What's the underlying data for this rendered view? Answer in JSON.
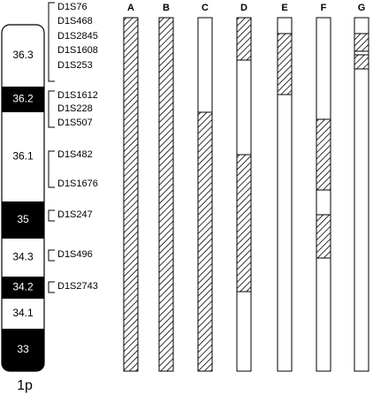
{
  "chromosome": {
    "label": "1p",
    "bands": [
      "36.3",
      "36.2",
      "36.1",
      "35",
      "34.3",
      "34.2",
      "34.1",
      "33"
    ]
  },
  "marker_groups": [
    [
      "D1S76",
      "D1S468",
      "D1S2845",
      "D1S1608",
      "D1S253"
    ],
    [
      "D1S1612",
      "D1S228",
      "D1S507"
    ],
    [
      "D1S482",
      "D1S1676"
    ],
    [
      "D1S247"
    ],
    [
      "D1S496"
    ],
    [
      "D1S2743"
    ]
  ],
  "columns": [
    "A",
    "B",
    "C",
    "D",
    "E",
    "F",
    "G"
  ]
}
